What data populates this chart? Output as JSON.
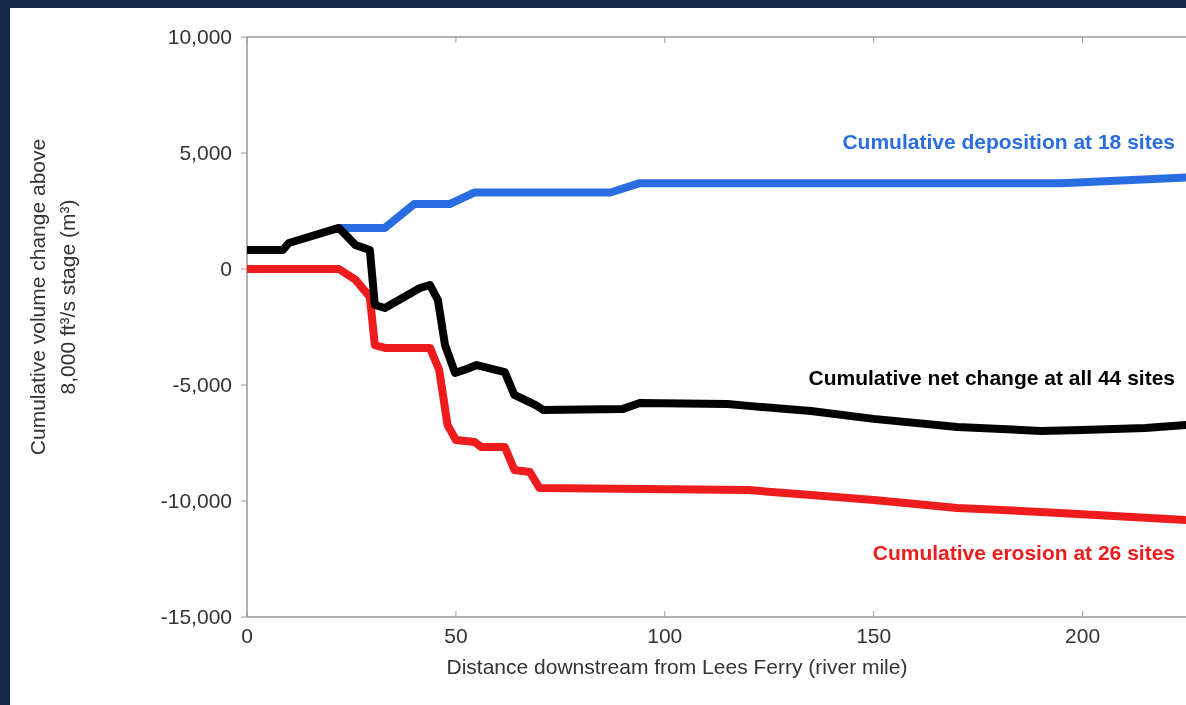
{
  "chart_data": {
    "type": "line",
    "xlabel": "Distance downstream from Lees Ferry (river mile)",
    "ylabel": "Cumulative volume change above 8,000 ft³/s stage (m³)",
    "xlim": [
      0,
      225
    ],
    "xticks": [
      0,
      50,
      100,
      150,
      200
    ],
    "ylim": [
      -15000,
      10000
    ],
    "yticks": [
      {
        "value": -15000,
        "label": "-15,000"
      },
      {
        "value": -10000,
        "label": "-10,000"
      },
      {
        "value": -5000,
        "label": "-5,000"
      },
      0,
      {
        "value": 5000,
        "label": "5,000"
      },
      {
        "value": 10000,
        "label": "10,000"
      }
    ],
    "grid": false,
    "marker": "none",
    "line_style": "solid",
    "series": [
      {
        "name": "Cumulative deposition at 18 sites",
        "color": "#2a6de0",
        "x": [
          22,
          26,
          33,
          40,
          48.5,
          54.5,
          87,
          94,
          195,
          225
        ],
        "values": [
          1770,
          1770,
          1770,
          2800,
          2800,
          3300,
          3300,
          3700,
          3700,
          3950
        ]
      },
      {
        "name": "Cumulative erosion at 26 sites",
        "color": "#ee1c1c",
        "x": [
          0,
          22,
          26,
          29.4,
          30.6,
          33,
          43.8,
          46,
          48,
          50,
          54.5,
          56,
          61.7,
          64,
          67.7,
          70,
          120,
          135,
          150,
          170,
          190,
          225
        ],
        "values": [
          0,
          0,
          -470,
          -1200,
          -3280,
          -3400,
          -3400,
          -4350,
          -6720,
          -7370,
          -7460,
          -7670,
          -7670,
          -8660,
          -8750,
          -9440,
          -9530,
          -9740,
          -9960,
          -10300,
          -10470,
          -10820
        ]
      },
      {
        "name": "Cumulative net change at all 44 sites",
        "color": "#000000",
        "x": [
          0,
          8.6,
          10,
          22,
          26,
          29.4,
          30.6,
          33,
          41.4,
          43.8,
          45.7,
          47.4,
          49.8,
          52,
          55,
          61.7,
          64,
          69,
          71,
          90,
          94,
          115,
          120,
          135,
          150,
          170,
          190,
          200,
          215,
          225
        ],
        "values": [
          820,
          820,
          1120,
          1770,
          1030,
          820,
          -1550,
          -1680,
          -820,
          -690,
          -1340,
          -3280,
          -4480,
          -4350,
          -4140,
          -4440,
          -5430,
          -5860,
          -6080,
          -6030,
          -5780,
          -5820,
          -5900,
          -6120,
          -6460,
          -6810,
          -6980,
          -6940,
          -6850,
          -6720
        ]
      }
    ]
  }
}
